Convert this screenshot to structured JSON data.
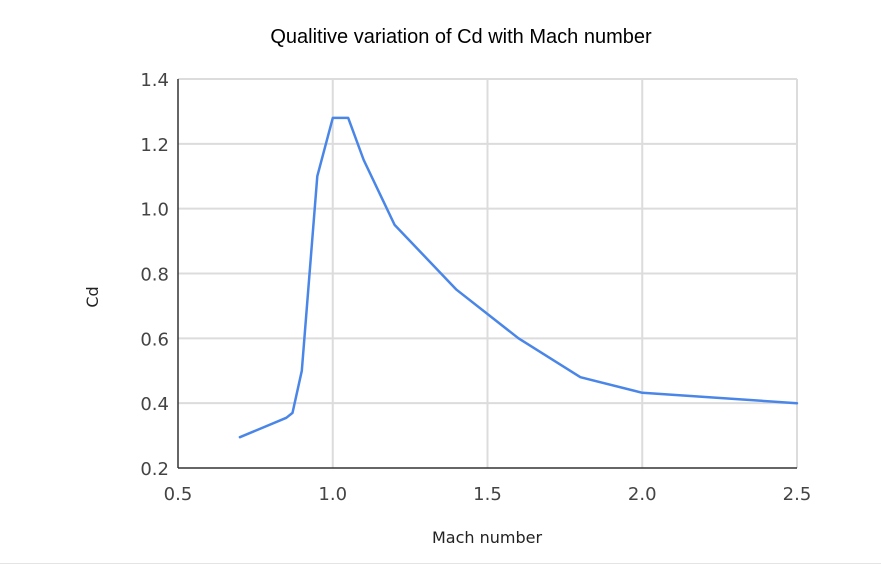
{
  "chart_data": {
    "type": "line",
    "title": "Qualitive variation of Cd with Mach number",
    "xlabel": "Mach number",
    "ylabel": "Cd",
    "xlim": [
      0.5,
      2.5
    ],
    "ylim": [
      0.2,
      1.4
    ],
    "xticks": [
      "0.5",
      "1.0",
      "1.5",
      "2.0",
      "2.5"
    ],
    "yticks": [
      "0.2",
      "0.4",
      "0.6",
      "0.8",
      "1.0",
      "1.2",
      "1.4"
    ],
    "grid": true,
    "legend": "none",
    "series": [
      {
        "color": "#4a86e8",
        "points": [
          [
            0.7,
            0.295
          ],
          [
            0.85,
            0.355
          ],
          [
            0.87,
            0.37
          ],
          [
            0.9,
            0.5
          ],
          [
            0.95,
            1.1
          ],
          [
            1.0,
            1.28
          ],
          [
            1.05,
            1.28
          ],
          [
            1.1,
            1.15
          ],
          [
            1.2,
            0.95
          ],
          [
            1.4,
            0.75
          ],
          [
            1.6,
            0.6
          ],
          [
            1.8,
            0.48
          ],
          [
            2.0,
            0.432
          ],
          [
            2.5,
            0.4
          ]
        ]
      }
    ]
  }
}
